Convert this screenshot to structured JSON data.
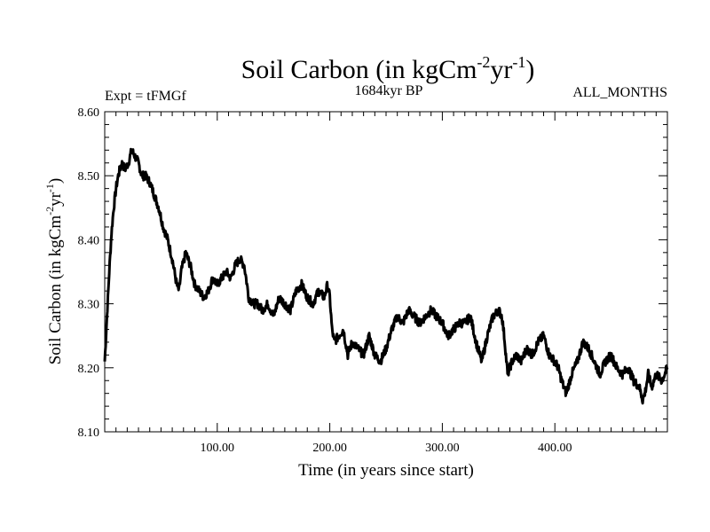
{
  "chart_data": {
    "type": "line",
    "title": {
      "main": "Soil Carbon (in kgCm",
      "sup1": "-2",
      "mid": "yr",
      "sup2": "-1",
      "end": ")"
    },
    "left_label": "Expt = tFMGf",
    "center_label": "1684kyr BP",
    "right_label": "ALL_MONTHS",
    "xlabel": "Time (in years since start)",
    "ylabel": {
      "main": "Soil Carbon (in kgCm",
      "sup1": "-2",
      "mid": "yr",
      "sup2": "-1",
      "end": ")"
    },
    "xlim": [
      0,
      500
    ],
    "ylim": [
      8.1,
      8.6
    ],
    "x_ticks": [
      100,
      200,
      300,
      400
    ],
    "x_tick_labels": [
      "100.00",
      "200.00",
      "300.00",
      "400.00"
    ],
    "y_ticks": [
      8.1,
      8.2,
      8.3,
      8.4,
      8.5,
      8.6
    ],
    "y_tick_labels": [
      "8.10",
      "8.20",
      "8.30",
      "8.40",
      "8.50",
      "8.60"
    ],
    "series": [
      {
        "name": "Soil Carbon",
        "x": [
          0,
          2,
          4,
          6,
          8,
          10,
          12,
          15,
          18,
          21,
          24,
          27,
          30,
          33,
          36,
          40,
          44,
          48,
          52,
          56,
          60,
          64,
          66,
          68,
          72,
          76,
          80,
          84,
          88,
          92,
          96,
          100,
          104,
          108,
          112,
          116,
          120,
          124,
          128,
          132,
          136,
          140,
          145,
          150,
          155,
          160,
          165,
          170,
          175,
          180,
          185,
          190,
          195,
          198,
          200,
          202,
          204,
          208,
          212,
          216,
          220,
          225,
          230,
          235,
          240,
          245,
          250,
          255,
          260,
          265,
          270,
          275,
          280,
          285,
          290,
          295,
          300,
          305,
          310,
          315,
          320,
          325,
          330,
          335,
          340,
          345,
          350,
          353,
          355,
          358,
          362,
          366,
          370,
          375,
          380,
          385,
          390,
          395,
          400,
          403,
          406,
          410,
          415,
          420,
          425,
          430,
          435,
          440,
          445,
          450,
          455,
          460,
          465,
          470,
          475,
          478,
          480,
          483,
          486,
          490,
          495,
          500
        ],
        "values": [
          8.21,
          8.28,
          8.35,
          8.41,
          8.45,
          8.48,
          8.5,
          8.52,
          8.51,
          8.52,
          8.54,
          8.53,
          8.52,
          8.5,
          8.5,
          8.49,
          8.47,
          8.45,
          8.42,
          8.4,
          8.37,
          8.33,
          8.32,
          8.35,
          8.38,
          8.36,
          8.33,
          8.32,
          8.31,
          8.32,
          8.34,
          8.33,
          8.34,
          8.35,
          8.34,
          8.36,
          8.37,
          8.36,
          8.31,
          8.3,
          8.3,
          8.29,
          8.3,
          8.28,
          8.31,
          8.3,
          8.29,
          8.32,
          8.33,
          8.31,
          8.3,
          8.32,
          8.31,
          8.33,
          8.31,
          8.26,
          8.24,
          8.25,
          8.26,
          8.22,
          8.24,
          8.23,
          8.22,
          8.25,
          8.22,
          8.21,
          8.23,
          8.26,
          8.28,
          8.27,
          8.29,
          8.28,
          8.27,
          8.28,
          8.29,
          8.28,
          8.27,
          8.25,
          8.26,
          8.27,
          8.27,
          8.28,
          8.24,
          8.21,
          8.25,
          8.28,
          8.29,
          8.28,
          8.25,
          8.19,
          8.21,
          8.22,
          8.21,
          8.23,
          8.22,
          8.24,
          8.25,
          8.22,
          8.21,
          8.2,
          8.18,
          8.16,
          8.19,
          8.21,
          8.24,
          8.23,
          8.21,
          8.19,
          8.21,
          8.22,
          8.2,
          8.19,
          8.2,
          8.18,
          8.17,
          8.15,
          8.16,
          8.19,
          8.17,
          8.19,
          8.18,
          8.2
        ]
      }
    ]
  }
}
